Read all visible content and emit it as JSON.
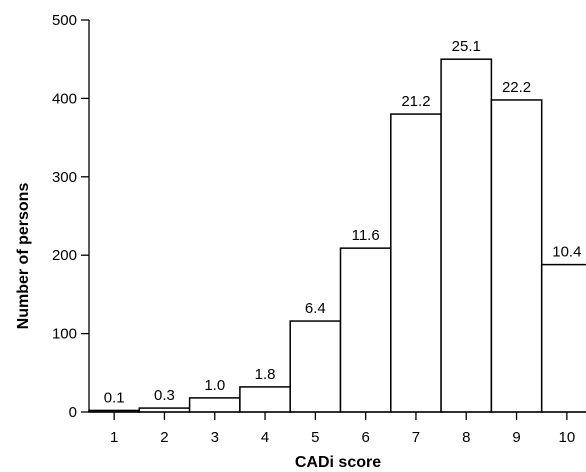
{
  "chart_data": {
    "type": "bar",
    "title": "",
    "xlabel": "CADi score",
    "ylabel": "Number of persons",
    "categories": [
      "1",
      "2",
      "3",
      "4",
      "5",
      "6",
      "7",
      "8",
      "9",
      "10"
    ],
    "values": [
      2,
      5,
      18,
      32,
      116,
      209,
      380,
      450,
      398,
      188
    ],
    "data_labels": [
      "0.1",
      "0.3",
      "1.0",
      "1.8",
      "6.4",
      "11.6",
      "21.2",
      "25.1",
      "22.2",
      "10.4"
    ],
    "y_ticks": [
      0,
      100,
      200,
      300,
      400,
      500
    ],
    "ylim": [
      0,
      500
    ],
    "grid": false,
    "legend": "none"
  }
}
